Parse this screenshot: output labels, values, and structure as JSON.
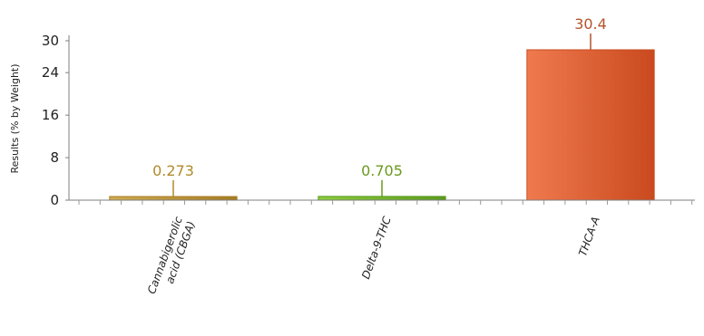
{
  "chart_data": {
    "type": "bar",
    "title": "",
    "xlabel": "",
    "ylabel": "Results (% by Weight)",
    "ylim": [
      0,
      30
    ],
    "yticks": [
      0,
      8,
      16,
      24,
      30
    ],
    "grid": false,
    "categories": [
      [
        "Cannabigerolic",
        "acid (CBGA)"
      ],
      [
        "Delta-9-THC"
      ],
      [
        "THCA-A"
      ]
    ],
    "values": [
      0.273,
      0.705,
      30.4
    ],
    "value_labels": [
      "0.273",
      "0.705",
      "30.4"
    ],
    "colors": [
      {
        "light": "#d1ab52",
        "dark": "#a57c22",
        "label": "#b08a2a"
      },
      {
        "light": "#8ccc3c",
        "dark": "#5a9a1e",
        "label": "#6a9a1e"
      },
      {
        "light": "#ef7a4e",
        "dark": "#c94a1e",
        "label": "#b5532a"
      }
    ]
  }
}
